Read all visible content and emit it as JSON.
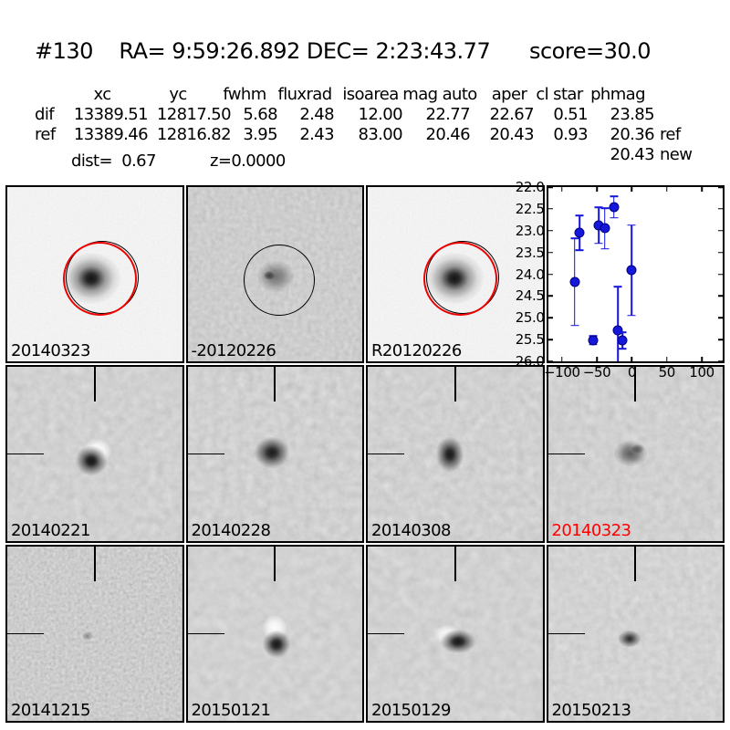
{
  "header": {
    "title": "#130    RA= 9:59:26.892 DEC= 2:23:43.77      score=30.0"
  },
  "photometry": {
    "columns": [
      "xc",
      "yc",
      "fwhm",
      "fluxrad",
      "isoarea",
      "mag auto",
      "aper",
      "cl star",
      "phmag"
    ],
    "rows": [
      {
        "label": "dif",
        "values": [
          "13389.51",
          "12817.50",
          "5.68",
          "2.48",
          "12.00",
          "22.77",
          "22.67",
          "0.51",
          "23.85"
        ],
        "suffix": ""
      },
      {
        "label": "ref",
        "values": [
          "13389.46",
          "12816.82",
          "3.95",
          "2.43",
          "83.00",
          "20.46",
          "20.43",
          "0.93",
          "20.36"
        ],
        "suffix": "ref"
      }
    ],
    "extra": {
      "value": "20.43",
      "suffix": "new"
    },
    "dist": "dist=  0.67",
    "z": "z=0.0000"
  },
  "panels": [
    {
      "label": "20140323",
      "label_color": "#000000"
    },
    {
      "label": "-20120226",
      "label_color": "#000000"
    },
    {
      "label": "R20120226",
      "label_color": "#000000"
    },
    {
      "label": "20140221",
      "label_color": "#000000"
    },
    {
      "label": "20140228",
      "label_color": "#000000"
    },
    {
      "label": "20140308",
      "label_color": "#000000"
    },
    {
      "label": "20140323",
      "label_color": "#ff0000"
    },
    {
      "label": "20141215",
      "label_color": "#000000"
    },
    {
      "label": "20150121",
      "label_color": "#000000"
    },
    {
      "label": "20150129",
      "label_color": "#000000"
    },
    {
      "label": "20150213",
      "label_color": "#000000"
    }
  ],
  "chart_data": {
    "type": "scatter",
    "title": "",
    "xlabel": "",
    "ylabel": "",
    "xlim": [
      -120,
      130
    ],
    "ylim": [
      22.0,
      26.0
    ],
    "y_axis_inverted": true,
    "grid": false,
    "marker_color": "#1414dd",
    "xticks": {
      "values": [
        -100,
        -50,
        0,
        50,
        100
      ],
      "labels": [
        "−100",
        "−50",
        "0",
        "50",
        "100"
      ]
    },
    "yticks": {
      "values": [
        22.0,
        22.5,
        23.0,
        23.5,
        24.0,
        24.5,
        25.0,
        25.5,
        26.0
      ],
      "labels": [
        "22.0",
        "22.5",
        "23.0",
        "23.5",
        "24.0",
        "24.5",
        "25.0",
        "25.5",
        "26.0"
      ]
    },
    "series": [
      {
        "name": "difference magnitude lightcurve",
        "points": [
          {
            "x": -82,
            "y": 24.18,
            "yerr": 1.0
          },
          {
            "x": -75,
            "y": 23.05,
            "yerr": 0.4
          },
          {
            "x": -55,
            "y": 25.52,
            "yerr": 0.1
          },
          {
            "x": -47,
            "y": 22.88,
            "yerr": 0.41
          },
          {
            "x": -39,
            "y": 22.95,
            "yerr": 0.47
          },
          {
            "x": -26,
            "y": 22.46,
            "yerr": 0.25
          },
          {
            "x": -20,
            "y": 25.29,
            "yerr": 1.0
          },
          {
            "x": -13,
            "y": 25.52,
            "yerr": 0.19
          },
          {
            "x": 0,
            "y": 23.91,
            "yerr": 1.04
          }
        ]
      }
    ]
  }
}
